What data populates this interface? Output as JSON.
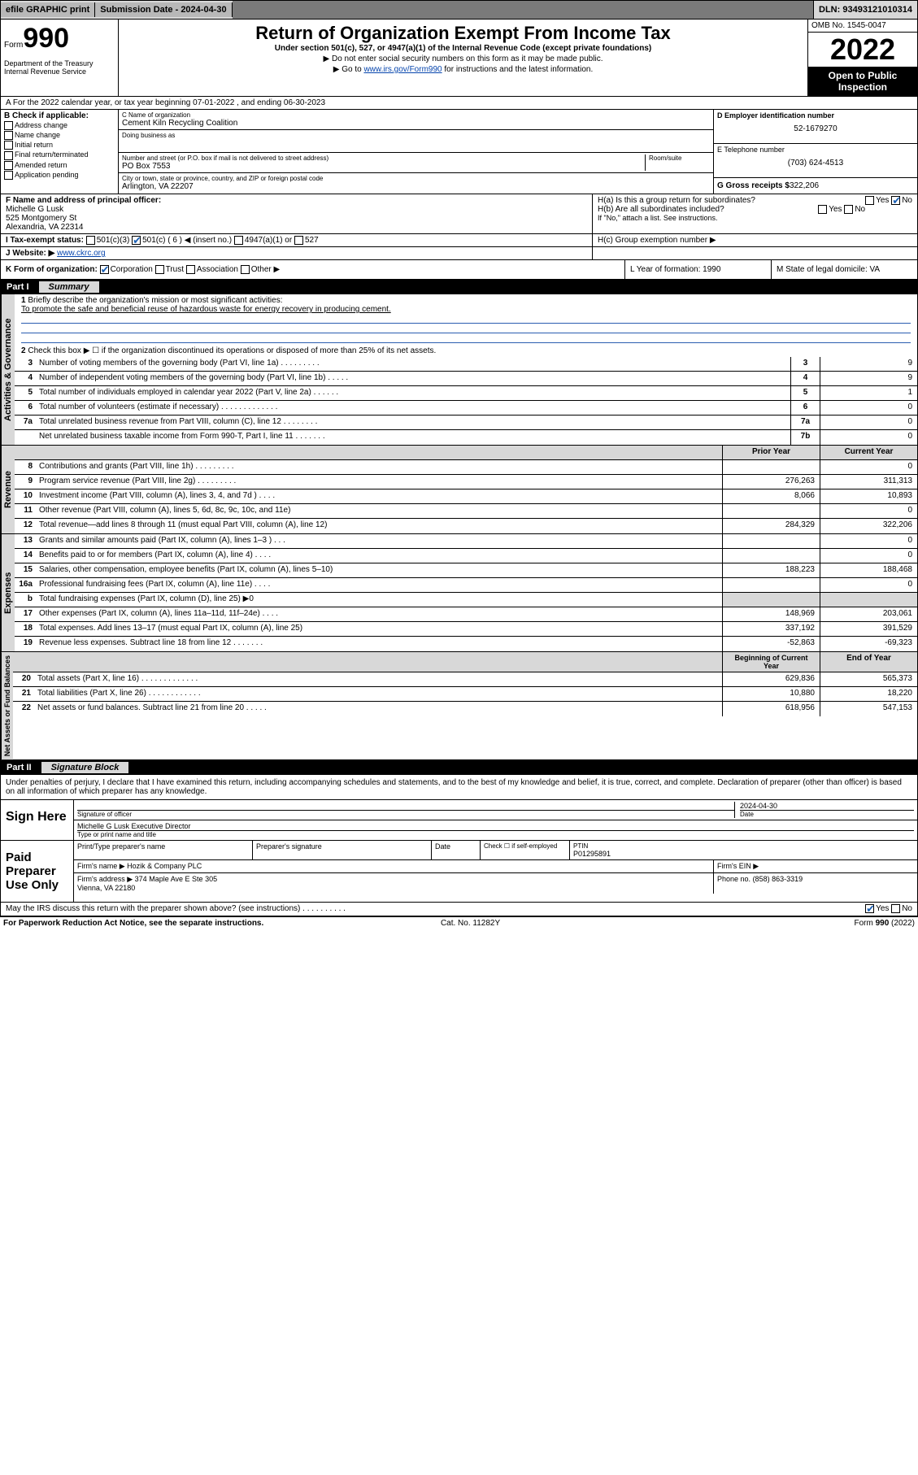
{
  "topbar": {
    "efile": "efile GRAPHIC print",
    "submission_label": "Submission Date - 2024-04-30",
    "dln": "DLN: 93493121010314"
  },
  "header": {
    "form_word": "Form",
    "form_num": "990",
    "dept": "Department of the Treasury\nInternal Revenue Service",
    "title": "Return of Organization Exempt From Income Tax",
    "sub": "Under section 501(c), 527, or 4947(a)(1) of the Internal Revenue Code (except private foundations)",
    "note1": "▶ Do not enter social security numbers on this form as it may be made public.",
    "note2_pre": "▶ Go to ",
    "note2_link": "www.irs.gov/Form990",
    "note2_post": " for instructions and the latest information.",
    "omb": "OMB No. 1545-0047",
    "year": "2022",
    "open": "Open to Public Inspection"
  },
  "rowA": "A For the 2022 calendar year, or tax year beginning 07-01-2022    , and ending 06-30-2023",
  "colB": {
    "head": "B Check if applicable:",
    "items": [
      "Address change",
      "Name change",
      "Initial return",
      "Final return/terminated",
      "Amended return",
      "Application pending"
    ]
  },
  "colC": {
    "name_label": "C Name of organization",
    "name": "Cement Kiln Recycling Coalition",
    "dba_label": "Doing business as",
    "addr_label": "Number and street (or P.O. box if mail is not delivered to street address)",
    "room_label": "Room/suite",
    "addr": "PO Box 7553",
    "city_label": "City or town, state or province, country, and ZIP or foreign postal code",
    "city": "Arlington, VA  22207"
  },
  "colD": {
    "ein_label": "D Employer identification number",
    "ein": "52-1679270",
    "phone_label": "E Telephone number",
    "phone": "(703) 624-4513",
    "gross_label": "G Gross receipts $",
    "gross": "322,206"
  },
  "rowF": {
    "f_label": "F  Name and address of principal officer:",
    "f_name": "Michelle G Lusk",
    "f_addr1": "525 Montgomery St",
    "f_addr2": "Alexandria, VA  22314",
    "ha": "H(a)  Is this a group return for subordinates?",
    "hb": "H(b)  Are all subordinates included?",
    "hb_note": "If \"No,\" attach a list. See instructions.",
    "hc": "H(c)  Group exemption number ▶"
  },
  "rowI": {
    "label": "I     Tax-exempt status:",
    "opts": [
      "501(c)(3)",
      "501(c) ( 6 ) ◀ (insert no.)",
      "4947(a)(1) or",
      "527"
    ]
  },
  "rowJ": {
    "label": "J    Website: ▶",
    "val": "www.ckrc.org"
  },
  "rowK": {
    "k": "K Form of organization:",
    "opts": [
      "Corporation",
      "Trust",
      "Association",
      "Other ▶"
    ],
    "l": "L Year of formation: 1990",
    "m": "M State of legal domicile: VA"
  },
  "part1": {
    "label": "Part I",
    "title": "Summary"
  },
  "governance": {
    "label": "Activities & Governance",
    "q1": "Briefly describe the organization's mission or most significant activities:",
    "mission": "To promote the safe and beneficial reuse of hazardous waste for energy recovery in producing cement.",
    "q2": "Check this box ▶ ☐  if the organization discontinued its operations or disposed of more than 25% of its net assets.",
    "rows": [
      {
        "n": "3",
        "t": "Number of voting members of the governing body (Part VI, line 1a)  .   .   .   .   .   .   .   .   .",
        "b": "3",
        "v": "9"
      },
      {
        "n": "4",
        "t": "Number of independent voting members of the governing body (Part VI, line 1b)  .   .   .   .   .",
        "b": "4",
        "v": "9"
      },
      {
        "n": "5",
        "t": "Total number of individuals employed in calendar year 2022 (Part V, line 2a)  .   .   .   .   .   .",
        "b": "5",
        "v": "1"
      },
      {
        "n": "6",
        "t": "Total number of volunteers (estimate if necessary)  .   .   .   .   .   .   .   .   .   .   .   .   .",
        "b": "6",
        "v": "0"
      },
      {
        "n": "7a",
        "t": "Total unrelated business revenue from Part VIII, column (C), line 12  .   .   .   .   .   .   .   .",
        "b": "7a",
        "v": "0"
      },
      {
        "n": "",
        "t": "Net unrelated business taxable income from Form 990-T, Part I, line 11  .   .   .   .   .   .   .",
        "b": "7b",
        "v": "0"
      }
    ]
  },
  "revenue": {
    "label": "Revenue",
    "hdr_prior": "Prior Year",
    "hdr_curr": "Current Year",
    "rows": [
      {
        "n": "8",
        "t": "Contributions and grants (Part VIII, line 1h)  .   .   .   .   .   .   .   .   .",
        "p": "",
        "c": "0"
      },
      {
        "n": "9",
        "t": "Program service revenue (Part VIII, line 2g)  .   .   .   .   .   .   .   .   .",
        "p": "276,263",
        "c": "311,313"
      },
      {
        "n": "10",
        "t": "Investment income (Part VIII, column (A), lines 3, 4, and 7d )  .   .   .   .",
        "p": "8,066",
        "c": "10,893"
      },
      {
        "n": "11",
        "t": "Other revenue (Part VIII, column (A), lines 5, 6d, 8c, 9c, 10c, and 11e)",
        "p": "",
        "c": "0"
      },
      {
        "n": "12",
        "t": "Total revenue—add lines 8 through 11 (must equal Part VIII, column (A), line 12)",
        "p": "284,329",
        "c": "322,206"
      }
    ]
  },
  "expenses": {
    "label": "Expenses",
    "rows": [
      {
        "n": "13",
        "t": "Grants and similar amounts paid (Part IX, column (A), lines 1–3 )  .   .   .",
        "p": "",
        "c": "0"
      },
      {
        "n": "14",
        "t": "Benefits paid to or for members (Part IX, column (A), line 4)  .   .   .   .",
        "p": "",
        "c": "0"
      },
      {
        "n": "15",
        "t": "Salaries, other compensation, employee benefits (Part IX, column (A), lines 5–10)",
        "p": "188,223",
        "c": "188,468"
      },
      {
        "n": "16a",
        "t": "Professional fundraising fees (Part IX, column (A), line 11e)  .   .   .   .",
        "p": "",
        "c": "0"
      },
      {
        "n": "b",
        "t": "Total fundraising expenses (Part IX, column (D), line 25) ▶0",
        "p": null,
        "c": null
      },
      {
        "n": "17",
        "t": "Other expenses (Part IX, column (A), lines 11a–11d, 11f–24e)  .   .   .   .",
        "p": "148,969",
        "c": "203,061"
      },
      {
        "n": "18",
        "t": "Total expenses. Add lines 13–17 (must equal Part IX, column (A), line 25)",
        "p": "337,192",
        "c": "391,529"
      },
      {
        "n": "19",
        "t": "Revenue less expenses. Subtract line 18 from line 12  .   .   .   .   .   .   .",
        "p": "-52,863",
        "c": "-69,323"
      }
    ]
  },
  "netassets": {
    "label": "Net Assets or Fund Balances",
    "hdr_begin": "Beginning of Current Year",
    "hdr_end": "End of Year",
    "rows": [
      {
        "n": "20",
        "t": "Total assets (Part X, line 16)  .   .   .   .   .   .   .   .   .   .   .   .   .",
        "p": "629,836",
        "c": "565,373"
      },
      {
        "n": "21",
        "t": "Total liabilities (Part X, line 26)  .   .   .   .   .   .   .   .   .   .   .   .",
        "p": "10,880",
        "c": "18,220"
      },
      {
        "n": "22",
        "t": "Net assets or fund balances. Subtract line 21 from line 20  .   .   .   .   .",
        "p": "618,956",
        "c": "547,153"
      }
    ]
  },
  "part2": {
    "label": "Part II",
    "title": "Signature Block"
  },
  "penalty": "Under penalties of perjury, I declare that I have examined this return, including accompanying schedules and statements, and to the best of my knowledge and belief, it is true, correct, and complete. Declaration of preparer (other than officer) is based on all information of which preparer has any knowledge.",
  "sign": {
    "label": "Sign Here",
    "sig_of_officer": "Signature of officer",
    "date_label": "Date",
    "date": "2024-04-30",
    "name": "Michelle G Lusk  Executive Director",
    "type_label": "Type or print name and title"
  },
  "preparer": {
    "label": "Paid Preparer Use Only",
    "col1": "Print/Type preparer's name",
    "col2": "Preparer's signature",
    "col3": "Date",
    "col4": "Check ☐ if self-employed",
    "ptin_label": "PTIN",
    "ptin": "P01295891",
    "firm_name_label": "Firm's name    ▶",
    "firm_name": "Hozik & Company PLC",
    "firm_ein_label": "Firm's EIN ▶",
    "firm_addr_label": "Firm's address ▶",
    "firm_addr": "374 Maple Ave E Ste 305\nVienna, VA  22180",
    "phone_label": "Phone no.",
    "phone": "(858) 863-3319"
  },
  "discuss": "May the IRS discuss this return with the preparer shown above? (see instructions)   .   .   .   .   .   .   .   .   .   .",
  "footer": {
    "left": "For Paperwork Reduction Act Notice, see the separate instructions.",
    "mid": "Cat. No. 11282Y",
    "right": "Form 990 (2022)"
  }
}
